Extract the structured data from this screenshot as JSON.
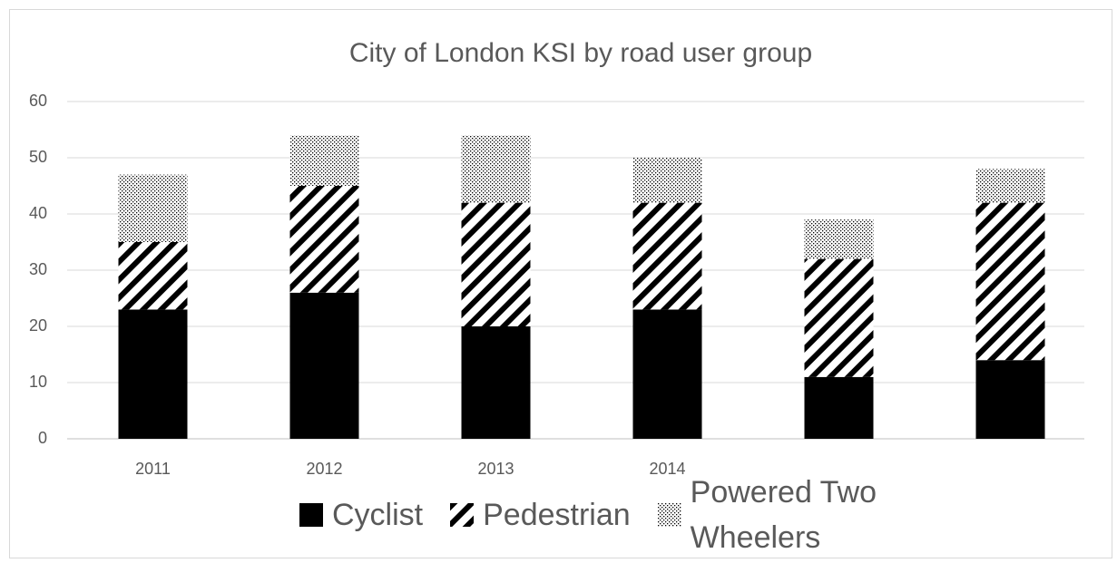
{
  "chart_data": {
    "type": "stacked_bar",
    "title": "City of London KSI by road user group",
    "categories": [
      "2011",
      "2012",
      "2013",
      "2014",
      null,
      null
    ],
    "series": [
      {
        "name": "Cyclist",
        "color": "#000000",
        "pattern": "solid",
        "values": [
          23,
          26,
          20,
          23,
          11,
          14
        ]
      },
      {
        "name": "Pedestrian",
        "color": "#000000",
        "pattern": "diagonal",
        "values": [
          12,
          19,
          22,
          19,
          21,
          28
        ]
      },
      {
        "name": "Powered Two Wheelers",
        "color": "#000000",
        "pattern": "dots",
        "values": [
          12,
          9,
          12,
          8,
          7,
          6
        ]
      }
    ],
    "ylim": [
      0,
      60
    ],
    "yticks": [
      0,
      10,
      20,
      30,
      40,
      50,
      60
    ],
    "grid": true,
    "legend": "bottom"
  }
}
